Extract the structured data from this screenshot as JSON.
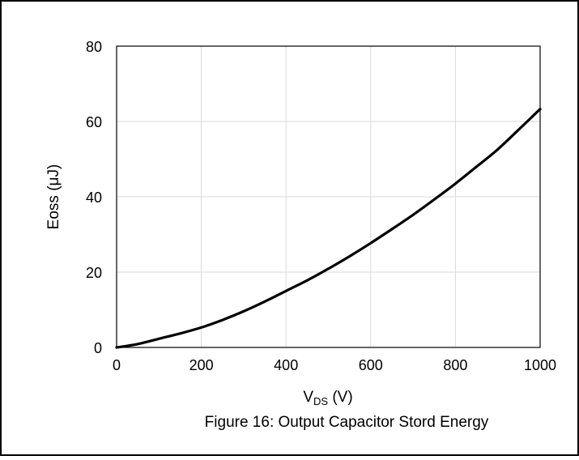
{
  "chart_data": {
    "type": "line",
    "caption": "Figure 16: Output Capacitor Stord Energy",
    "xlabel": {
      "main": "V",
      "sub": "DS",
      "unit": " (V)"
    },
    "ylabel": "Eoss (μJ)",
    "xlim": [
      0,
      1000
    ],
    "ylim": [
      0,
      80
    ],
    "xticks": [
      "0",
      "200",
      "400",
      "600",
      "800",
      "1000"
    ],
    "yticks": [
      "0",
      "20",
      "40",
      "60",
      "80"
    ],
    "grid": true,
    "legend": "none",
    "series": [
      {
        "color": "#000000",
        "x": [
          0,
          50,
          100,
          150,
          200,
          250,
          300,
          350,
          400,
          450,
          500,
          550,
          600,
          650,
          700,
          750,
          800,
          850,
          900,
          950,
          1000
        ],
        "y": [
          0,
          0.9,
          2.3,
          3.7,
          5.3,
          7.3,
          9.6,
          12.2,
          15.0,
          17.8,
          20.9,
          24.2,
          27.7,
          31.4,
          35.2,
          39.3,
          43.5,
          48.0,
          52.6,
          57.9,
          63.3
        ]
      }
    ]
  }
}
